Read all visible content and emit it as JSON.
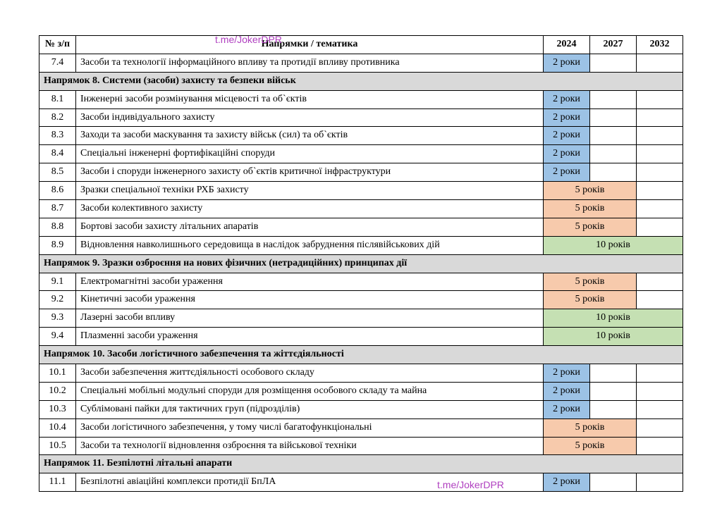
{
  "watermarks": {
    "top": "t.me/JokerDPR",
    "bottom": "t.me/JokerDPR"
  },
  "header": {
    "num": "№ з/п",
    "topic": "Напрямки / тематика",
    "y2024": "2024",
    "y2027": "2027",
    "y2032": "2032"
  },
  "colors": {
    "blue": "#9cc2e5",
    "orange": "#f7caac",
    "green": "#c5e0b3",
    "section_bg": "#d9d9d9",
    "border": "#000000"
  },
  "durations": {
    "y2": "2 роки",
    "y5": "5 років",
    "y10": "10 років"
  },
  "rows": [
    {
      "type": "item",
      "num": "7.4",
      "topic": "Засоби та технології інформаційного впливу та протидії впливу противника",
      "span": 1,
      "cls": "c-blue",
      "dur": "y2"
    },
    {
      "type": "section",
      "label": "Напрямок 8. Системи (засоби) захисту та безпеки військ"
    },
    {
      "type": "item",
      "num": "8.1",
      "topic": "Інженерні засоби розмінування місцевості та об`єктів",
      "span": 1,
      "cls": "c-blue",
      "dur": "y2"
    },
    {
      "type": "item",
      "num": "8.2",
      "topic": "Засоби індивідуального захисту",
      "span": 1,
      "cls": "c-blue",
      "dur": "y2"
    },
    {
      "type": "item",
      "num": "8.3",
      "topic": "Заходи та засоби маскування та захисту військ (сил) та об`єктів",
      "span": 1,
      "cls": "c-blue",
      "dur": "y2"
    },
    {
      "type": "item",
      "num": "8.4",
      "topic": "Спеціальні інженерні фортифікаційні споруди",
      "span": 1,
      "cls": "c-blue",
      "dur": "y2"
    },
    {
      "type": "item",
      "num": "8.5",
      "topic": "Засоби і споруди інженерного захисту об`єктів критичної інфраструктури",
      "span": 1,
      "cls": "c-blue",
      "dur": "y2"
    },
    {
      "type": "item",
      "num": "8.6",
      "topic": "Зразки спеціальної техніки РХБ захисту",
      "span": 2,
      "cls": "c-orange",
      "dur": "y5"
    },
    {
      "type": "item",
      "num": "8.7",
      "topic": "Засоби колективного захисту",
      "span": 2,
      "cls": "c-orange",
      "dur": "y5"
    },
    {
      "type": "item",
      "num": "8.8",
      "topic": "Бортові засоби захисту літальних апаратів",
      "span": 2,
      "cls": "c-orange",
      "dur": "y5"
    },
    {
      "type": "item",
      "num": "8.9",
      "topic": "Відновлення навколишнього середовища в наслідок забруднення післявійськових дій",
      "span": 3,
      "cls": "c-green",
      "dur": "y10"
    },
    {
      "type": "section",
      "label": "Напрямок 9. Зразки озброєння на нових фізичних (нетрадиційних) принципах дії"
    },
    {
      "type": "item",
      "num": "9.1",
      "topic": "Електромагнітні засоби ураження",
      "span": 2,
      "cls": "c-orange",
      "dur": "y5"
    },
    {
      "type": "item",
      "num": "9.2",
      "topic": "Кінетичні засоби ураження",
      "span": 2,
      "cls": "c-orange",
      "dur": "y5"
    },
    {
      "type": "item",
      "num": "9.3",
      "topic": "Лазерні засоби впливу",
      "span": 3,
      "cls": "c-green",
      "dur": "y10"
    },
    {
      "type": "item",
      "num": "9.4",
      "topic": "Плазменні засоби ураження",
      "span": 3,
      "cls": "c-green",
      "dur": "y10"
    },
    {
      "type": "section",
      "label": "Напрямок 10. Засоби логістичного забезпечення та жіттєдіяльності"
    },
    {
      "type": "item",
      "num": "10.1",
      "topic": "Засоби забезпечення життєдіяльності особового складу",
      "span": 1,
      "cls": "c-blue",
      "dur": "y2"
    },
    {
      "type": "item",
      "num": "10.2",
      "topic": "Спеціальні мобільні модульні споруди для розміщення особового складу та майна",
      "span": 1,
      "cls": "c-blue",
      "dur": "y2"
    },
    {
      "type": "item",
      "num": "10.3",
      "topic": "Сублімовані пайки для тактичних груп (підрозділів)",
      "span": 1,
      "cls": "c-blue",
      "dur": "y2"
    },
    {
      "type": "item",
      "num": "10.4",
      "topic": "Засоби логістичного забезпечення, у тому числі багатофункціональні",
      "span": 2,
      "cls": "c-orange",
      "dur": "y5"
    },
    {
      "type": "item",
      "num": "10.5",
      "topic": "Засоби та технології відновлення озброєння та військової техніки",
      "span": 2,
      "cls": "c-orange",
      "dur": "y5"
    },
    {
      "type": "section",
      "label": "Напрямок 11. Безпілотні літальні апарати"
    },
    {
      "type": "item",
      "num": "11.1",
      "topic": "Безпілотні авіаційні комплекси протидії БпЛА",
      "span": 1,
      "cls": "c-blue",
      "dur": "y2"
    }
  ]
}
